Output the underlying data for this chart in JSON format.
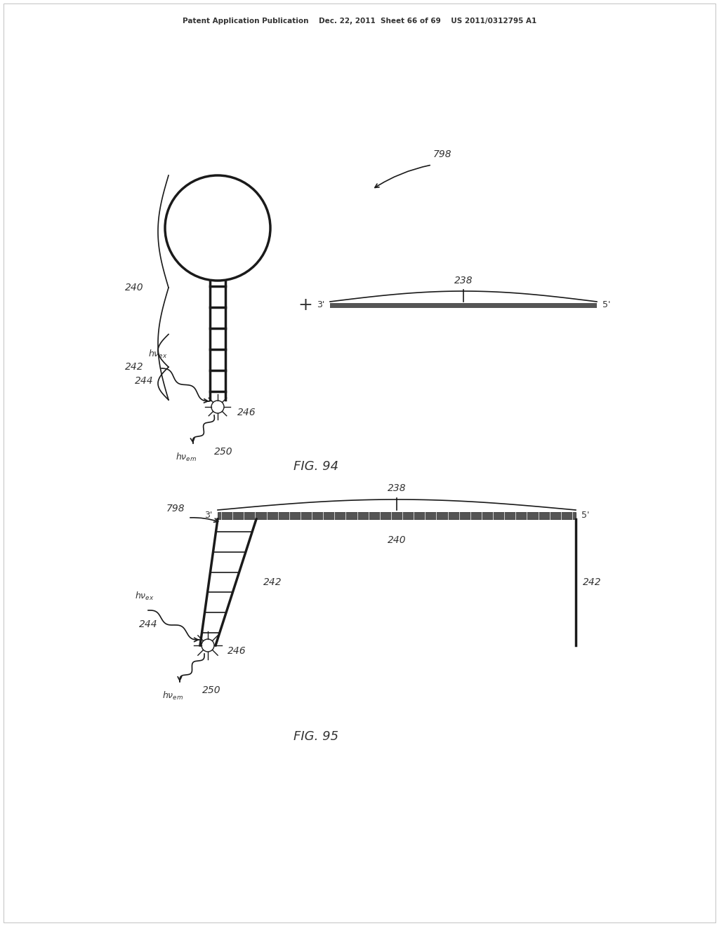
{
  "bg_color": "#ffffff",
  "header_text": "Patent Application Publication    Dec. 22, 2011  Sheet 66 of 69    US 2011/0312795 A1",
  "fig94_label": "FIG. 94",
  "fig95_label": "FIG. 95",
  "label_240_fig94": "240",
  "label_242_fig94": "242",
  "label_244_fig94": "244",
  "label_246_fig94": "246",
  "label_250_fig94": "250",
  "label_238_fig94": "238",
  "label_798_fig94": "798",
  "label_240_fig95": "240",
  "label_242_fig95_left": "242",
  "label_242_fig95_right": "242",
  "label_244_fig95": "244",
  "label_246_fig95": "246",
  "label_250_fig95": "250",
  "label_238_fig95": "238",
  "label_798_fig95": "798",
  "line_color": "#1a1a1a",
  "thick_bar_color": "#555555",
  "ladder_color": "#2a2a2a",
  "annotation_color": "#555555",
  "text_color": "#333333"
}
